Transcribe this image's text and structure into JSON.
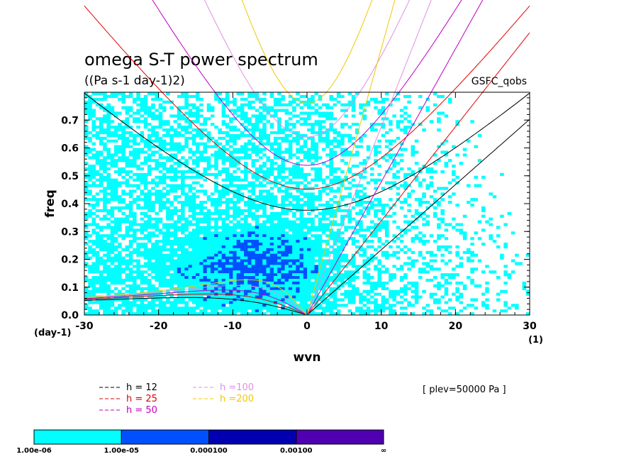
{
  "chart_data": {
    "type": "heatmap",
    "title": "omega S-T power spectrum",
    "units": "((Pa s-1 day-1)2)",
    "model": "GSFC_qobs",
    "xlabel": "wvn",
    "ylabel": "freq",
    "x_unit_label": "(1)",
    "y_unit_label": "(day-1)",
    "xlim": [
      -30,
      30
    ],
    "ylim": [
      0,
      0.8
    ],
    "xticks": [
      "-30",
      "-20",
      "-10",
      "0",
      "10",
      "20",
      "30"
    ],
    "yticks": [
      "0.0",
      "0.1",
      "0.2",
      "0.3",
      "0.4",
      "0.5",
      "0.6",
      "0.7"
    ],
    "plev_label": "[ plev=50000 Pa ]",
    "dispersion_curves": [
      {
        "name": "h = 12",
        "color": "#000000",
        "h": 12
      },
      {
        "name": "h = 25",
        "color": "#e00000",
        "h": 25
      },
      {
        "name": "h = 50",
        "color": "#c000c0",
        "h": 50
      },
      {
        "name": "h =100",
        "color": "#e090e0",
        "h": 100
      },
      {
        "name": "h =200",
        "color": "#f0c800",
        "h": 200
      }
    ],
    "colorbar": {
      "levels": [
        "1.00e-06",
        "1.00e-05",
        "0.000100",
        "0.00100",
        "∞"
      ],
      "colors": [
        "#00ffff",
        "#0050ff",
        "#0000b0",
        "#5000b0"
      ]
    }
  }
}
